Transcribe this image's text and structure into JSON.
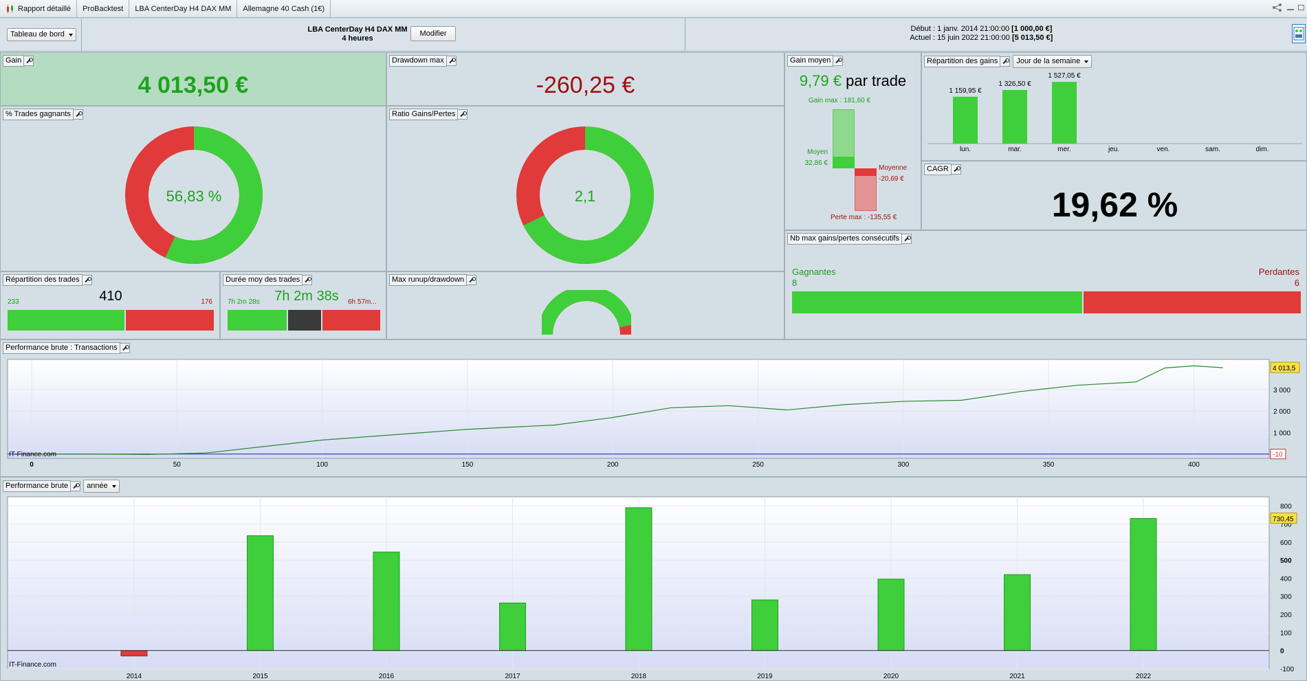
{
  "tabs": [
    {
      "label": "Rapport détaillé"
    },
    {
      "label": "ProBacktest"
    },
    {
      "label": "LBA CenterDay H4 DAX MM"
    },
    {
      "label": "Allemagne 40 Cash (1€)"
    }
  ],
  "header": {
    "view_select": "Tableau de bord",
    "strategy_name": "LBA CenterDay H4 DAX MM",
    "timeframe": "4 heures",
    "modify_button": "Modifier",
    "start_label": "Début :",
    "start_date": "1 janv. 2014 21:00:00",
    "start_value": "[1 000,00 €]",
    "current_label": "Actuel :",
    "current_date": "15 juin 2022 21:00:00",
    "current_value": "[5 013,50 €]"
  },
  "gain": {
    "title": "Gain",
    "value": "4 013,50 €"
  },
  "drawdown": {
    "title": "Drawdown max",
    "value": "-260,25 €"
  },
  "win_rate": {
    "title": "% Trades gagnants",
    "value": "56,83 %",
    "fraction": 0.5683
  },
  "ratio": {
    "title": "Ratio Gains/Pertes",
    "value": "2,1",
    "fraction": 0.677
  },
  "avg_gain": {
    "title": "Gain moyen",
    "value": "9,79 €",
    "suffix": "par trade",
    "gain_max": "Gain max : 181,60 €",
    "moyen_label": "Moyen",
    "moyen_value": "32,86 €",
    "moyenne_label": "Moyenne",
    "moyenne_value": "-20,69 €",
    "perte_max": "Perte max : -135,55 €"
  },
  "distribution": {
    "title": "Répartition des gains",
    "select": "Jour de la semaine",
    "days": [
      "lun.",
      "mar.",
      "mer.",
      "jeu.",
      "ven.",
      "sam.",
      "dim."
    ],
    "values": [
      1159.95,
      1326.5,
      1527.05,
      0,
      0,
      0,
      0
    ],
    "labels": [
      "1 159,95 €",
      "1 326,50 €",
      "1 527,05 €",
      "",
      "",
      "",
      ""
    ]
  },
  "cagr": {
    "title": "CAGR",
    "value": "19,62 %"
  },
  "trades": {
    "title": "Répartition des trades",
    "total": "410",
    "wins": "233",
    "losses": "176",
    "wins_count": 233,
    "losses_count": 176
  },
  "duration": {
    "title": "Durée moy des trades",
    "avg": "7h 2m 28s",
    "main": "7h 2m 38s",
    "loss": "6h 57m..."
  },
  "runup": {
    "title": "Max runup/drawdown",
    "fraction": 0.93
  },
  "consecutive": {
    "title": "Nb max gains/pertes consécutifs",
    "win_label": "Gagnantes",
    "win_value": "8",
    "wins": 8,
    "loss_label": "Perdantes",
    "loss_value": "6",
    "losses": 6
  },
  "perf_tx": {
    "title": "Performance brute : Transactions",
    "watermark": "IT-Finance.com",
    "last_badge": "4 013,5",
    "low_badge": "-10",
    "y_ticks": [
      "3 000",
      "2 000",
      "1 000"
    ],
    "x_ticks": [
      "0",
      "50",
      "100",
      "150",
      "200",
      "250",
      "300",
      "350",
      "400"
    ]
  },
  "perf_year": {
    "title": "Performance brute",
    "select": "année",
    "watermark": "IT-Finance.com",
    "last_badge": "730,45",
    "y_ticks": [
      "800",
      "700",
      "600",
      "500",
      "400",
      "300",
      "200",
      "100",
      "0",
      "-100"
    ],
    "years": [
      "2014",
      "2015",
      "2016",
      "2017",
      "2018",
      "2019",
      "2020",
      "2021",
      "2022"
    ],
    "values": [
      -30,
      635,
      545,
      263,
      790,
      280,
      395,
      420,
      730.45
    ]
  },
  "colors": {
    "green": "#3ecf3a",
    "red": "#e03a3a",
    "dark_green": "#1a9e1a",
    "dark_red": "#a01010"
  },
  "chart_data": [
    {
      "type": "bar",
      "title": "Répartition des gains",
      "categories": [
        "lun.",
        "mar.",
        "mer.",
        "jeu.",
        "ven.",
        "sam.",
        "dim."
      ],
      "values": [
        1159.95,
        1326.5,
        1527.05,
        0,
        0,
        0,
        0
      ]
    },
    {
      "type": "bar",
      "title": "Performance brute",
      "categories": [
        "2014",
        "2015",
        "2016",
        "2017",
        "2018",
        "2019",
        "2020",
        "2021",
        "2022"
      ],
      "values": [
        -30,
        635,
        545,
        263,
        790,
        280,
        395,
        420,
        730.45
      ],
      "ylim": [
        -100,
        850
      ]
    },
    {
      "type": "line",
      "title": "Performance brute : Transactions",
      "xlim": [
        0,
        420
      ],
      "ylim": [
        -200,
        4400
      ],
      "x": [
        0,
        20,
        40,
        60,
        80,
        100,
        120,
        150,
        180,
        200,
        220,
        240,
        260,
        280,
        300,
        320,
        340,
        360,
        380,
        390,
        400,
        410
      ],
      "y": [
        0,
        0,
        -20,
        50,
        350,
        650,
        850,
        1150,
        1350,
        1700,
        2150,
        2250,
        2050,
        2300,
        2450,
        2500,
        2900,
        3200,
        3350,
        4000,
        4100,
        4013.5
      ]
    }
  ]
}
